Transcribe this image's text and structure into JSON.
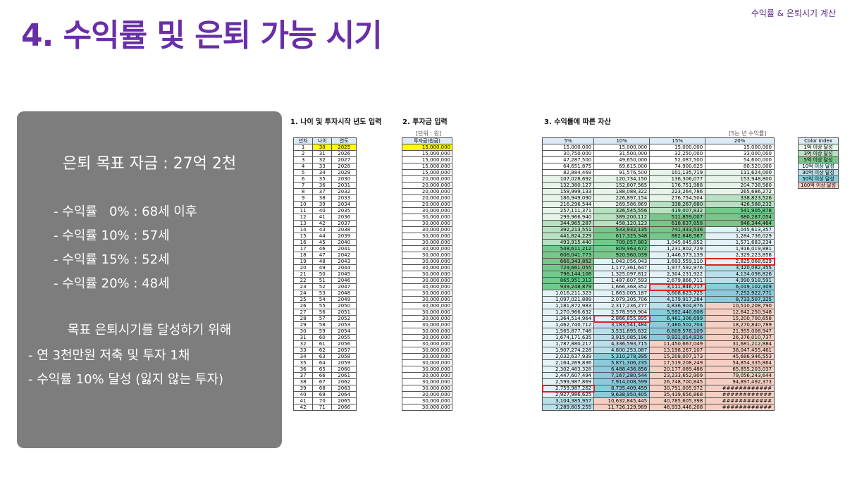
{
  "header": {
    "top_right": "수익률 & 은퇴시기 계산",
    "title": "4. 수익률 및 은퇴 가능 시기"
  },
  "panel": {
    "goal": "은퇴 목표 자금 : 27억 2천",
    "lines": [
      "- 수익률   0% : 68세 이후",
      "- 수익률 10% : 57세",
      "- 수익률 15% : 52세",
      "- 수익률 20% : 48세"
    ],
    "plan_title": "목표 은퇴시기를 달성하기 위해",
    "plan_lines": [
      "- 연 3천만원 저축 및 투자 1채",
      "- 수익률 10% 달성 (잃지 않는 투자)"
    ]
  },
  "section1": {
    "title": "1. 나이 및 투자시작 년도 입력",
    "headers": [
      "년차",
      "나이",
      "연도"
    ]
  },
  "section2": {
    "title": "2. 투자금 입력",
    "unit": "[단위 : 원]",
    "header": "투자금(원금)"
  },
  "section3": {
    "title": "3. 수익률에 따른 자산",
    "unit": "[5는 년 수익률]",
    "headers": [
      "5%",
      "10%",
      "15%",
      "20%"
    ]
  },
  "rows": [
    [
      "1",
      "30",
      "2025",
      "15,000,000",
      "15,000,000",
      "15,000,000",
      "15,000,000",
      "15,000,000"
    ],
    [
      "2",
      "31",
      "2026",
      "15,000,000",
      "30,750,000",
      "31,500,000",
      "32,250,000",
      "33,000,000"
    ],
    [
      "3",
      "32",
      "2027",
      "15,000,000",
      "47,287,500",
      "49,650,000",
      "52,087,500",
      "54,600,000"
    ],
    [
      "4",
      "33",
      "2028",
      "15,000,000",
      "64,651,875",
      "69,615,000",
      "74,900,625",
      "80,520,000"
    ],
    [
      "5",
      "34",
      "2029",
      "15,000,000",
      "82,884,469",
      "91,576,500",
      "101,135,719",
      "111,624,000"
    ],
    [
      "6",
      "35",
      "2030",
      "20,000,000",
      "107,028,692",
      "120,734,150",
      "136,306,077",
      "153,948,800"
    ],
    [
      "7",
      "36",
      "2031",
      "20,000,000",
      "132,380,127",
      "152,807,565",
      "176,751,988",
      "204,738,560"
    ],
    [
      "8",
      "37",
      "2032",
      "20,000,000",
      "158,999,133",
      "188,088,322",
      "223,264,786",
      "265,686,272"
    ],
    [
      "9",
      "38",
      "2033",
      "20,000,000",
      "186,949,090",
      "226,897,154",
      "276,754,504",
      "338,823,526"
    ],
    [
      "10",
      "39",
      "2034",
      "20,000,000",
      "216,296,544",
      "269,586,869",
      "338,267,680",
      "426,588,232"
    ],
    [
      "11",
      "40",
      "2035",
      "30,000,000",
      "257,111,371",
      "326,545,556",
      "419,007,832",
      "541,905,878"
    ],
    [
      "12",
      "41",
      "2036",
      "30,000,000",
      "299,966,940",
      "389,200,112",
      "511,859,007",
      "680,287,054"
    ],
    [
      "13",
      "42",
      "2037",
      "30,000,000",
      "344,965,287",
      "458,120,123",
      "618,637,858",
      "846,344,464"
    ],
    [
      "14",
      "43",
      "2038",
      "30,000,000",
      "392,213,551",
      "533,932,135",
      "741,433,536",
      "1,045,613,357"
    ],
    [
      "15",
      "44",
      "2039",
      "30,000,000",
      "441,824,229",
      "617,325,348",
      "882,648,567",
      "1,284,736,029"
    ],
    [
      "16",
      "45",
      "2040",
      "30,000,000",
      "493,915,440",
      "709,057,883",
      "1,045,045,852",
      "1,571,683,234"
    ],
    [
      "17",
      "46",
      "2041",
      "30,000,000",
      "548,611,212",
      "809,963,672",
      "1,231,802,729",
      "1,916,019,881"
    ],
    [
      "18",
      "47",
      "2042",
      "30,000,000",
      "606,041,773",
      "920,960,039",
      "1,446,573,139",
      "2,329,223,858"
    ],
    [
      "19",
      "48",
      "2043",
      "30,000,000",
      "666,343,862",
      "1,043,056,043",
      "1,693,559,110",
      "2,825,068,629"
    ],
    [
      "20",
      "49",
      "2044",
      "30,000,000",
      "729,661,055",
      "1,177,361,647",
      "1,977,592,976",
      "3,420,082,355"
    ],
    [
      "21",
      "50",
      "2045",
      "30,000,000",
      "796,144,108",
      "1,325,097,812",
      "2,304,231,922",
      "4,134,098,826"
    ],
    [
      "22",
      "51",
      "2046",
      "30,000,000",
      "865,951,313",
      "1,487,607,593",
      "2,679,866,711",
      "4,990,918,591"
    ],
    [
      "23",
      "52",
      "2047",
      "30,000,000",
      "939,248,879",
      "1,666,368,352",
      "3,111,846,717",
      "6,019,102,309"
    ],
    [
      "24",
      "53",
      "2048",
      "30,000,000",
      "1,016,211,323",
      "1,863,005,187",
      "3,608,623,725",
      "7,252,922,771"
    ],
    [
      "25",
      "54",
      "2049",
      "30,000,000",
      "1,097,021,889",
      "2,079,305,706",
      "4,179,917,284",
      "8,733,507,325"
    ],
    [
      "26",
      "55",
      "2050",
      "30,000,000",
      "1,181,872,983",
      "2,317,236,277",
      "4,836,904,876",
      "10,510,208,790"
    ],
    [
      "27",
      "56",
      "2051",
      "30,000,000",
      "1,270,966,632",
      "2,578,959,904",
      "5,592,440,608",
      "12,642,250,548"
    ],
    [
      "28",
      "57",
      "2052",
      "30,000,000",
      "1,364,514,964",
      "2,866,855,895",
      "6,461,306,699",
      "15,200,700,658"
    ],
    [
      "29",
      "58",
      "2053",
      "30,000,000",
      "1,462,740,712",
      "3,183,541,484",
      "7,460,502,704",
      "18,270,840,789"
    ],
    [
      "30",
      "59",
      "2054",
      "30,000,000",
      "1,565,877,748",
      "3,531,895,632",
      "8,609,578,109",
      "21,955,008,947"
    ],
    [
      "31",
      "60",
      "2055",
      "30,000,000",
      "1,674,171,635",
      "3,915,085,196",
      "9,931,014,826",
      "26,376,010,737"
    ],
    [
      "32",
      "61",
      "2056",
      "30,000,000",
      "1,787,880,217",
      "4,336,593,715",
      "11,450,667,049",
      "31,681,212,884"
    ],
    [
      "33",
      "62",
      "2057",
      "30,000,000",
      "1,907,274,228",
      "4,800,253,087",
      "13,198,267,107",
      "38,047,455,461"
    ],
    [
      "34",
      "63",
      "2058",
      "30,000,000",
      "2,032,637,939",
      "5,310,278,395",
      "15,208,007,173",
      "45,686,946,553"
    ],
    [
      "35",
      "64",
      "2059",
      "30,000,000",
      "2,164,269,836",
      "5,871,306,235",
      "17,519,208,249",
      "54,854,335,864"
    ],
    [
      "36",
      "65",
      "2060",
      "30,000,000",
      "2,302,483,328",
      "6,488,436,858",
      "20,177,089,486",
      "65,855,203,037"
    ],
    [
      "37",
      "66",
      "2061",
      "30,000,000",
      "2,447,607,494",
      "7,167,280,544",
      "23,233,652,909",
      "79,056,243,644"
    ],
    [
      "38",
      "67",
      "2062",
      "30,000,000",
      "2,599,987,869",
      "7,914,008,599",
      "26,748,700,845",
      "94,897,492,373"
    ],
    [
      "39",
      "68",
      "2063",
      "30,000,000",
      "2,759,987,262",
      "8,735,409,459",
      "30,791,005,972",
      "############"
    ],
    [
      "40",
      "69",
      "2064",
      "30,000,000",
      "2,927,986,625",
      "9,638,950,405",
      "35,439,656,868",
      "############"
    ],
    [
      "41",
      "70",
      "2065",
      "30,000,000",
      "3,104,385,957",
      "10,632,845,445",
      "40,785,605,398",
      "############"
    ],
    [
      "42",
      "71",
      "2066",
      "30,000,000",
      "3,289,605,255",
      "11,726,129,989",
      "46,933,446,208",
      "############"
    ]
  ],
  "highlights": [
    [
      19,
      4
    ],
    [
      23,
      3
    ],
    [
      28,
      2
    ],
    [
      39,
      1
    ]
  ],
  "color_index": {
    "header": "Color Index",
    "items": [
      {
        "label": "1억 이상 달성",
        "color": "#e6f4ea"
      },
      {
        "label": "3억 이상 달성",
        "color": "#b7e1c0"
      },
      {
        "label": "5억 이상 달성",
        "color": "#74c98a"
      },
      {
        "label": "10억 이상 달성",
        "color": "#e3f2f6"
      },
      {
        "label": "30억 이상 달성",
        "color": "#b9e0ea"
      },
      {
        "label": "50억 이상 달성",
        "color": "#8ccbdb"
      },
      {
        "label": "100억 이상 달성",
        "color": "#f6cfc3"
      }
    ]
  }
}
